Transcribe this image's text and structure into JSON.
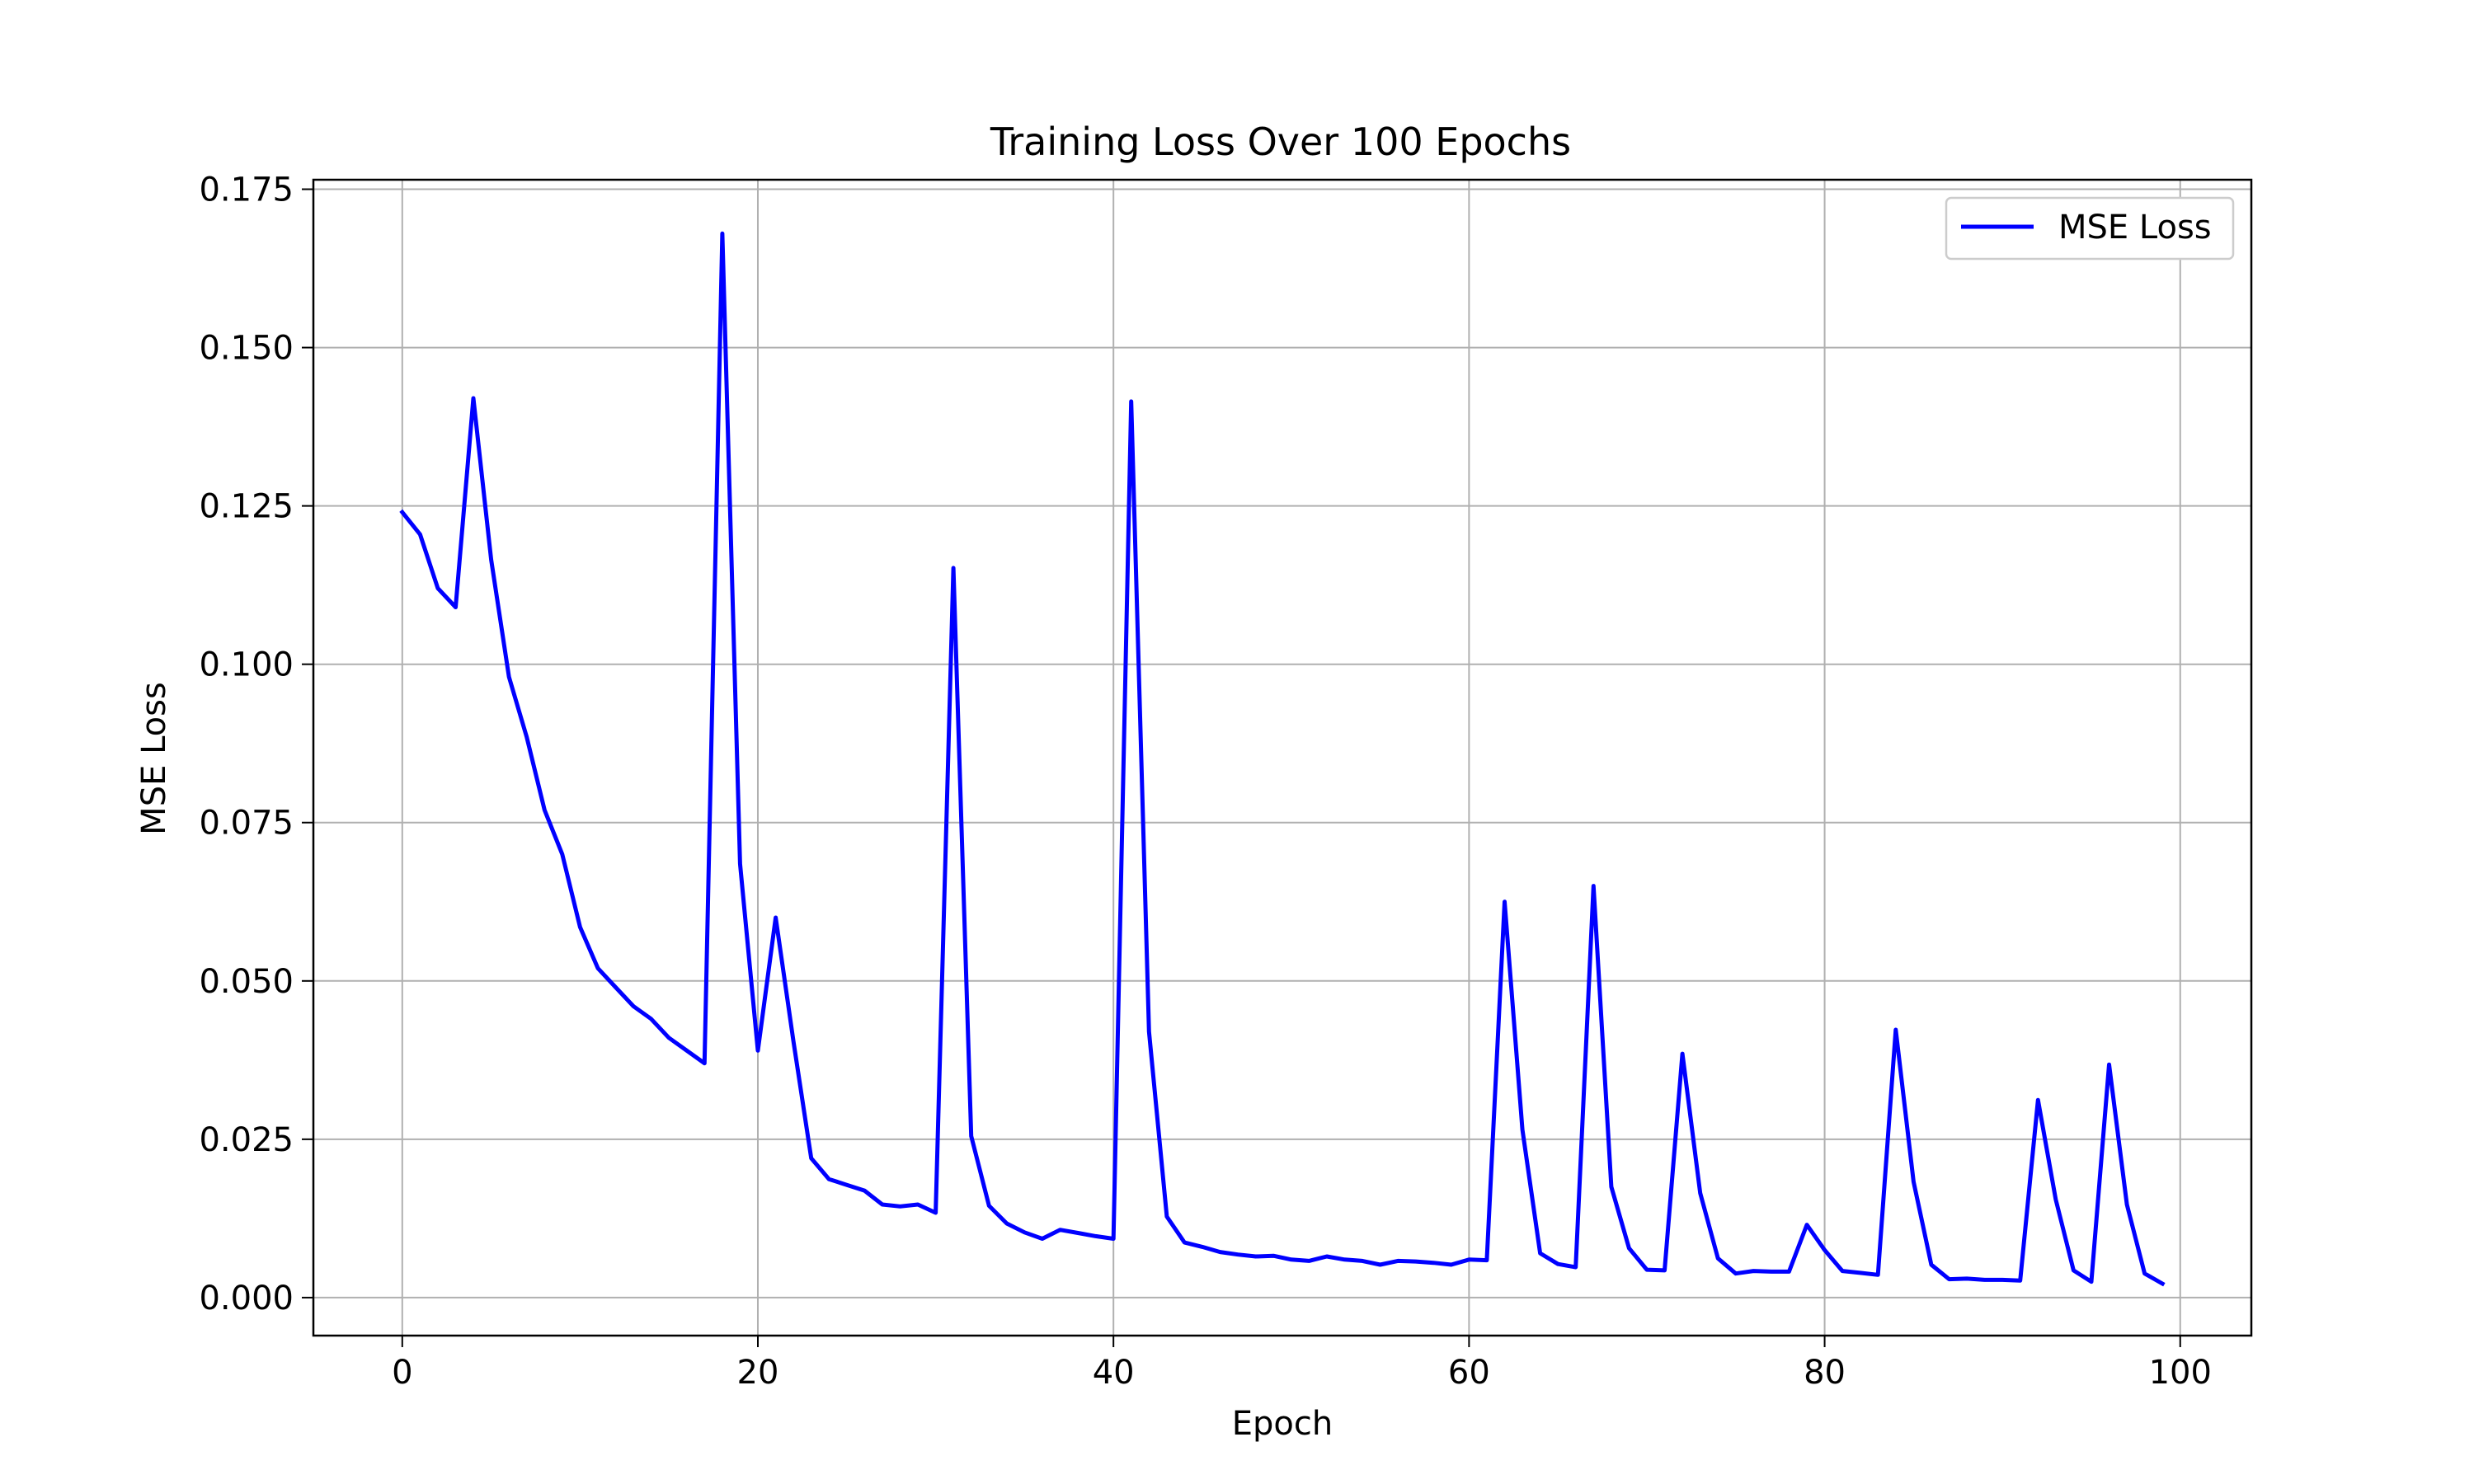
{
  "chart_data": {
    "type": "line",
    "title": "Training Loss Over 100 Epochs",
    "xlabel": "Epoch",
    "ylabel": "MSE Loss",
    "xlim": [
      -5,
      104
    ],
    "ylim": [
      -0.006,
      0.1765
    ],
    "xticks": [
      0,
      20,
      40,
      60,
      80,
      100
    ],
    "xtick_labels": [
      "0",
      "20",
      "40",
      "60",
      "80",
      "100"
    ],
    "yticks": [
      0.0,
      0.025,
      0.05,
      0.075,
      0.1,
      0.125,
      0.15,
      0.175
    ],
    "ytick_labels": [
      "0.000",
      "0.025",
      "0.050",
      "0.075",
      "0.100",
      "0.125",
      "0.150",
      "0.175"
    ],
    "grid": true,
    "legend_position": "top-right",
    "series": [
      {
        "name": "MSE Loss",
        "color": "#0000ff",
        "x": [
          0,
          1,
          2,
          3,
          4,
          5,
          6,
          7,
          8,
          9,
          10,
          11,
          12,
          13,
          14,
          15,
          16,
          17,
          18,
          19,
          20,
          21,
          22,
          23,
          24,
          25,
          26,
          27,
          28,
          29,
          30,
          31,
          32,
          33,
          34,
          35,
          36,
          37,
          38,
          39,
          40,
          41,
          42,
          43,
          44,
          45,
          46,
          47,
          48,
          49,
          50,
          51,
          52,
          53,
          54,
          55,
          56,
          57,
          58,
          59,
          60,
          61,
          62,
          63,
          64,
          65,
          66,
          67,
          68,
          69,
          70,
          71,
          72,
          73,
          74,
          75,
          76,
          77,
          78,
          79,
          80,
          81,
          82,
          83,
          84,
          85,
          86,
          87,
          88,
          89,
          90,
          91,
          92,
          93,
          94,
          95,
          96,
          97,
          98,
          99
        ],
        "y": [
          0.124,
          0.1205,
          0.112,
          0.109,
          0.142,
          0.1165,
          0.098,
          0.0885,
          0.077,
          0.07,
          0.0585,
          0.052,
          0.049,
          0.046,
          0.044,
          0.041,
          0.039,
          0.037,
          0.168,
          0.0685,
          0.039,
          0.06,
          0.0405,
          0.022,
          0.0187,
          0.0178,
          0.0169,
          0.0147,
          0.0144,
          0.0147,
          0.0134,
          0.1152,
          0.0255,
          0.0145,
          0.0117,
          0.0103,
          0.0093,
          0.0107,
          0.0102,
          0.0097,
          0.0093,
          0.1415,
          0.042,
          0.0128,
          0.0087,
          0.008,
          0.0072,
          0.0068,
          0.0065,
          0.0066,
          0.006,
          0.0058,
          0.0065,
          0.006,
          0.0058,
          0.0052,
          0.0058,
          0.0057,
          0.0055,
          0.0052,
          0.006,
          0.0059,
          0.0625,
          0.0265,
          0.007,
          0.0053,
          0.0048,
          0.065,
          0.0175,
          0.0078,
          0.0044,
          0.0043,
          0.0385,
          0.0165,
          0.0062,
          0.0038,
          0.0042,
          0.0041,
          0.0041,
          0.0115,
          0.0075,
          0.0042,
          0.0039,
          0.0036,
          0.0423,
          0.0183,
          0.0052,
          0.0029,
          0.003,
          0.0028,
          0.0028,
          0.0027,
          0.0312,
          0.0155,
          0.0043,
          0.0025,
          0.0368,
          0.0147,
          0.0038,
          0.0022
        ]
      }
    ]
  }
}
